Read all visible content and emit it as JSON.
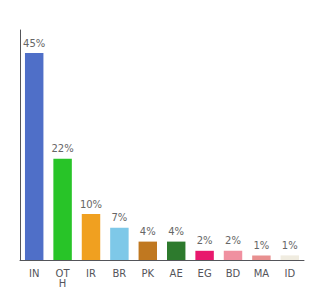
{
  "chart_data": {
    "type": "bar",
    "categories": [
      "IN",
      "OT\nH",
      "IR",
      "BR",
      "PK",
      "AE",
      "EG",
      "BD",
      "MA",
      "ID"
    ],
    "values": [
      45,
      22,
      10,
      7,
      4,
      4,
      2,
      2,
      1,
      1
    ],
    "value_labels": [
      "45%",
      "22%",
      "10%",
      "7%",
      "4%",
      "4%",
      "2%",
      "2%",
      "1%",
      "1%"
    ],
    "colors": [
      "#4f6fc8",
      "#28c428",
      "#f0a020",
      "#7ec8e8",
      "#c07820",
      "#2d7a2d",
      "#e8186d",
      "#f090a0",
      "#e89090",
      "#f0ece0"
    ],
    "ylim": [
      0,
      50
    ],
    "data_labels": true,
    "tick_labels": "x",
    "grid": false
  }
}
